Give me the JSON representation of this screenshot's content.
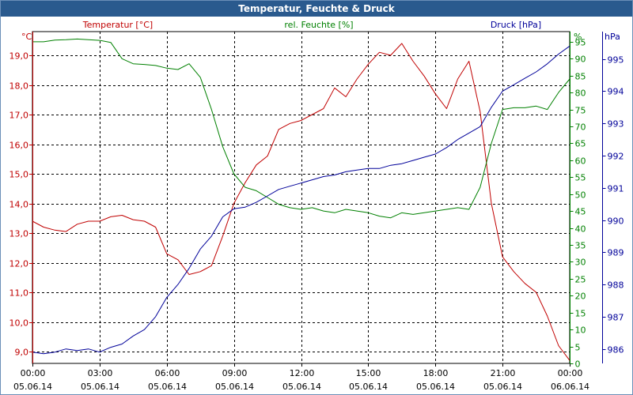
{
  "window": {
    "title": "Temperatur, Feuchte & Druck"
  },
  "colors": {
    "temperature": "#c00000",
    "humidity": "#008000",
    "pressure": "#000099",
    "grid": "#000000",
    "axis": "#000000"
  },
  "chart_data": {
    "type": "line",
    "title": "Temperatur, Feuchte & Druck",
    "grid": true,
    "x_ticks": [
      {
        "time": "00:00",
        "date": "05.06.14"
      },
      {
        "time": "03:00",
        "date": "05.06.14"
      },
      {
        "time": "06:00",
        "date": "05.06.14"
      },
      {
        "time": "09:00",
        "date": "05.06.14"
      },
      {
        "time": "12:00",
        "date": "05.06.14"
      },
      {
        "time": "15:00",
        "date": "05.06.14"
      },
      {
        "time": "18:00",
        "date": "05.06.14"
      },
      {
        "time": "21:00",
        "date": "05.06.14"
      },
      {
        "time": "00:00",
        "date": "06.06.14"
      }
    ],
    "xlim": [
      0,
      24
    ],
    "axes": {
      "temperature": {
        "label": "Temperatur [°C]",
        "unit": "°C",
        "range": [
          8.6,
          19.8
        ],
        "ticks": [
          "9,0",
          "10,0",
          "11,0",
          "12,0",
          "13,0",
          "14,0",
          "15,0",
          "16,0",
          "17,0",
          "18,0",
          "19,0"
        ],
        "tick_values": [
          9,
          10,
          11,
          12,
          13,
          14,
          15,
          16,
          17,
          18,
          19
        ]
      },
      "humidity": {
        "label": "rel. Feuchte [%]",
        "unit": "%",
        "range": [
          0,
          98
        ],
        "ticks": [
          "0",
          "5",
          "10",
          "15",
          "20",
          "25",
          "30",
          "35",
          "40",
          "45",
          "50",
          "55",
          "60",
          "65",
          "70",
          "75",
          "80",
          "85",
          "90",
          "95"
        ],
        "tick_values": [
          0,
          5,
          10,
          15,
          20,
          25,
          30,
          35,
          40,
          45,
          50,
          55,
          60,
          65,
          70,
          75,
          80,
          85,
          90,
          95
        ]
      },
      "pressure": {
        "label": "Druck [hPa]",
        "unit": "hPa",
        "range": [
          985.55,
          995.85
        ],
        "ticks": [
          "986",
          "987",
          "988",
          "989",
          "990",
          "991",
          "992",
          "993",
          "994",
          "995"
        ],
        "tick_values": [
          986,
          987,
          988,
          989,
          990,
          991,
          992,
          993,
          994,
          995
        ]
      }
    },
    "series": [
      {
        "name": "Temperatur [°C]",
        "axis": "temperature",
        "x": [
          0,
          0.5,
          1,
          1.5,
          2,
          2.5,
          3,
          3.5,
          4,
          4.5,
          5,
          5.5,
          6,
          6.5,
          7,
          7.5,
          8,
          8.5,
          9,
          9.5,
          10,
          10.5,
          11,
          11.5,
          12,
          12.5,
          13,
          13.5,
          14,
          14.5,
          15,
          15.5,
          16,
          16.5,
          17,
          17.5,
          18,
          18.5,
          19,
          19.5,
          20,
          20.5,
          21,
          21.5,
          22,
          22.5,
          23,
          23.5,
          24
        ],
        "values": [
          13.4,
          13.2,
          13.1,
          13.05,
          13.3,
          13.4,
          13.4,
          13.55,
          13.6,
          13.45,
          13.4,
          13.2,
          12.3,
          12.1,
          11.6,
          11.7,
          11.9,
          12.9,
          14.0,
          14.7,
          15.3,
          15.6,
          16.5,
          16.7,
          16.8,
          17.0,
          17.2,
          17.9,
          17.6,
          18.2,
          18.7,
          19.1,
          19.0,
          19.4,
          18.8,
          18.3,
          17.7,
          17.2,
          18.2,
          18.8,
          17.1,
          14.0,
          12.2,
          11.7,
          11.3,
          11.0,
          10.2,
          9.2,
          8.7
        ]
      },
      {
        "name": "rel. Feuchte [%]",
        "axis": "humidity",
        "x": [
          0,
          0.5,
          1,
          1.5,
          2,
          2.5,
          3,
          3.5,
          4,
          4.5,
          5,
          5.5,
          6,
          6.5,
          7,
          7.5,
          8,
          8.5,
          9,
          9.5,
          10,
          10.5,
          11,
          11.5,
          12,
          12.5,
          13,
          13.5,
          14,
          14.5,
          15,
          15.5,
          16,
          16.5,
          17,
          17.5,
          18,
          18.5,
          19,
          19.5,
          20,
          20.5,
          21,
          21.5,
          22,
          22.5,
          23,
          23.5,
          24
        ],
        "values": [
          95,
          95,
          95.5,
          95.6,
          95.8,
          95.6,
          95.4,
          94.8,
          90.0,
          88.5,
          88.3,
          88.0,
          87.2,
          86.8,
          88.5,
          84.5,
          75.0,
          64.0,
          56.0,
          52.0,
          51.0,
          49.0,
          47.0,
          46.0,
          45.5,
          46.0,
          45.0,
          44.5,
          45.5,
          45.0,
          44.5,
          43.5,
          43.0,
          44.5,
          44.0,
          44.5,
          45.0,
          45.5,
          46.0,
          45.5,
          52.0,
          65.0,
          75.0,
          75.5,
          75.5,
          76.0,
          75.0,
          80.0,
          84.0
        ]
      },
      {
        "name": "Druck [hPa]",
        "axis": "pressure",
        "x": [
          0,
          0.5,
          1,
          1.5,
          2,
          2.5,
          3,
          3.5,
          4,
          4.5,
          5,
          5.5,
          6,
          6.5,
          7,
          7.5,
          8,
          8.5,
          9,
          9.5,
          10,
          10.5,
          11,
          11.5,
          12,
          12.5,
          13,
          13.5,
          14,
          14.5,
          15,
          15.5,
          16,
          16.5,
          17,
          17.5,
          18,
          18.5,
          19,
          19.5,
          20,
          20.5,
          21,
          21.5,
          22,
          22.5,
          23,
          23.5,
          24
        ],
        "values": [
          985.9,
          985.85,
          985.9,
          986.0,
          985.95,
          986.0,
          985.9,
          986.05,
          986.15,
          986.4,
          986.6,
          987.0,
          987.6,
          988.0,
          988.5,
          989.1,
          989.5,
          990.1,
          990.35,
          990.4,
          990.55,
          990.75,
          990.95,
          991.05,
          991.15,
          991.25,
          991.35,
          991.4,
          991.5,
          991.55,
          991.6,
          991.6,
          991.7,
          991.75,
          991.85,
          991.95,
          992.05,
          992.25,
          992.5,
          992.7,
          992.9,
          993.5,
          994.0,
          994.2,
          994.4,
          994.6,
          994.85,
          995.15,
          995.4
        ]
      }
    ]
  }
}
